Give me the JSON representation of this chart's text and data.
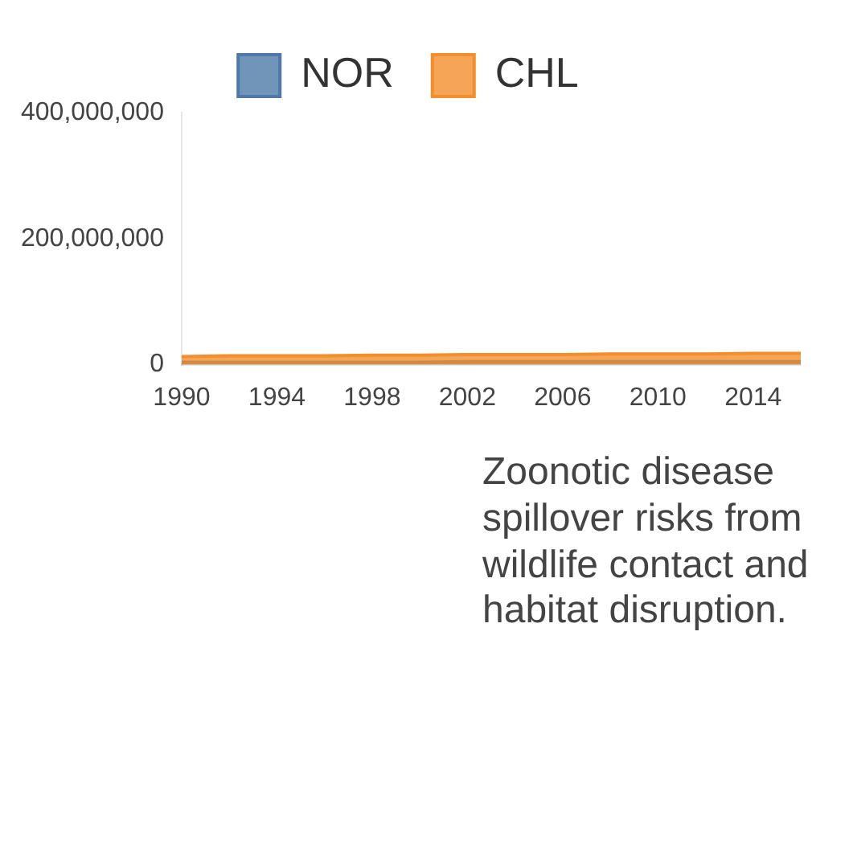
{
  "chart_data": {
    "type": "area",
    "title": "Zoonotic disease spillover risks from wildlife contact and habitat disruption.",
    "x": [
      1990,
      1992,
      1994,
      1996,
      1998,
      2000,
      2002,
      2004,
      2006,
      2008,
      2010,
      2012,
      2014,
      2016
    ],
    "series": [
      {
        "name": "NOR",
        "color": "#4e79a7",
        "values": [
          4000000,
          4000000,
          4000000,
          4000000,
          4000000,
          4000000,
          5000000,
          5000000,
          5000000,
          5000000,
          5000000,
          5000000,
          5000000,
          5000000
        ]
      },
      {
        "name": "CHL",
        "color": "#f28e2b",
        "values": [
          13000000,
          14000000,
          14000000,
          14000000,
          15000000,
          15000000,
          16000000,
          16000000,
          16000000,
          17000000,
          17000000,
          17000000,
          18000000,
          18000000
        ]
      }
    ],
    "xlim": [
      1990,
      2016
    ],
    "xticks": [
      1990,
      1994,
      1998,
      2002,
      2006,
      2010,
      2014
    ],
    "ylim": [
      0,
      400000000
    ],
    "yticks": [
      0,
      {
        "value": 200000000,
        "label": "200,000,000"
      },
      {
        "value": 400000000,
        "label": "400,000,000"
      }
    ],
    "legend": "top",
    "grid": false
  }
}
